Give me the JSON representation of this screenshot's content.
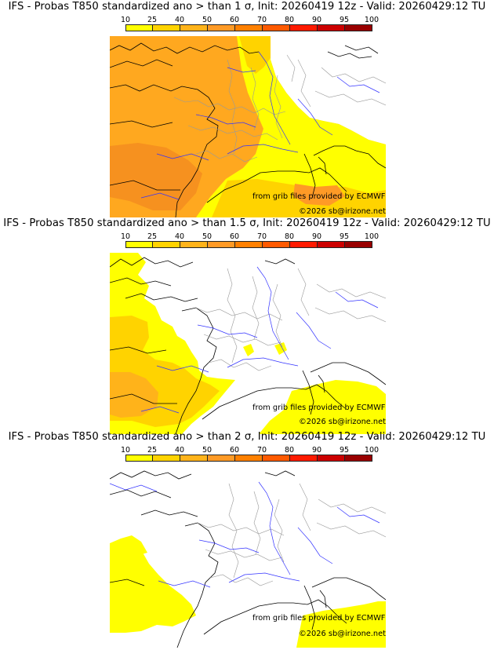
{
  "legend": {
    "ticks": [
      "10",
      "25",
      "40",
      "50",
      "60",
      "70",
      "80",
      "90",
      "95",
      "100"
    ],
    "colors": [
      "#ffff00",
      "#ffd300",
      "#ffb31a",
      "#ff9a26",
      "#ff8000",
      "#ff5a00",
      "#ff1a00",
      "#cc0000",
      "#990000",
      "#5a0000"
    ]
  },
  "panels": [
    {
      "title": "IFS - Probas T850  standardized ano > than 1 σ, Init: 20260419 12z - Valid: 20260429:12 TU",
      "credit": "from grib files provided by ECMWF",
      "copyright": "©2026 sb@irizone.net"
    },
    {
      "title": "IFS - Probas T850  standardized ano > than 1.5 σ, Init: 20260419 12z - Valid: 20260429:12 TU",
      "credit": "from grib files provided by ECMWF",
      "copyright": "©2026 sb@irizone.net"
    },
    {
      "title": "IFS - Probas T850  standardized ano > than 2 σ, Init: 20260419 12z - Valid: 20260429:12 TU",
      "credit": "from grib files provided by ECMWF",
      "copyright": "©2026 sb@irizone.net"
    }
  ]
}
